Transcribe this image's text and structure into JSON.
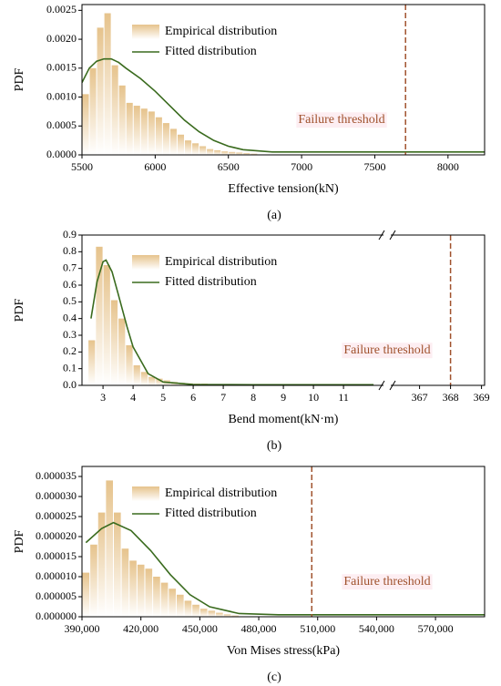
{
  "chart_data": [
    {
      "type": "histogram",
      "caption": "(a)",
      "xlabel": "Effective tension(kN)",
      "ylabel": "PDF",
      "xlim": [
        5500,
        8250
      ],
      "xticks": [
        5500,
        6000,
        6500,
        7000,
        7500,
        8000
      ],
      "ylim": [
        0,
        0.0026
      ],
      "yticks": [
        {
          "value": 0,
          "label": "0.0000"
        },
        0.0005,
        {
          "value": 0.001,
          "label": "0.0010"
        },
        0.0015,
        {
          "value": 0.002,
          "label": "0.0020"
        },
        0.0025
      ],
      "series": [
        {
          "name": "Empirical distribution",
          "type": "histogram",
          "color": "#e6c38c",
          "bins": [
            5500,
            5550,
            5600,
            5650,
            5700,
            5750,
            5800,
            5850,
            5900,
            5950,
            6000,
            6050,
            6100,
            6150,
            6200,
            6250,
            6300,
            6350,
            6400,
            6450,
            6500,
            6550,
            6600,
            6650,
            6700
          ],
          "values": [
            0.00105,
            0.0015,
            0.0022,
            0.00245,
            0.00155,
            0.0012,
            0.0009,
            0.00085,
            0.0008,
            0.00075,
            0.00065,
            0.00055,
            0.00045,
            0.00035,
            0.00025,
            0.0002,
            0.00015,
            0.0001,
            8e-05,
            6e-05,
            5e-05,
            4e-05,
            3e-05,
            2e-05
          ]
        },
        {
          "name": "Fitted distribution",
          "type": "line",
          "color": "#3a6b1e",
          "x": [
            5500,
            5550,
            5600,
            5650,
            5700,
            5750,
            5800,
            5900,
            6000,
            6100,
            6200,
            6300,
            6400,
            6500,
            6600,
            6800,
            7000,
            7500,
            8250
          ],
          "values": [
            0.00125,
            0.0015,
            0.00162,
            0.00166,
            0.00166,
            0.0016,
            0.0015,
            0.00132,
            0.0011,
            0.00085,
            0.0006,
            0.0004,
            0.00025,
            0.00015,
            9e-05,
            5e-05,
            5e-05,
            5e-05,
            5e-05
          ]
        }
      ],
      "threshold": {
        "label": "Failure threshold",
        "x": 7710,
        "color": "#a0522d"
      }
    },
    {
      "type": "histogram",
      "caption": "(b)",
      "xlabel": "Bend moment(kN·m)",
      "ylabel": "PDF",
      "xlim": [
        [
          2.3,
          12.3
        ],
        [
          366.1,
          369.1
        ]
      ],
      "xticks": [
        3,
        4,
        5,
        6,
        7,
        8,
        9,
        10,
        11,
        367,
        368,
        369
      ],
      "ylim": [
        0,
        0.9
      ],
      "yticks": [
        {
          "value": 0,
          "label": "0.0"
        },
        0.1,
        0.2,
        0.3,
        0.4,
        0.5,
        0.6,
        0.7,
        0.8,
        0.9
      ],
      "series": [
        {
          "name": "Empirical distribution",
          "type": "histogram",
          "color": "#e6c38c",
          "bins": [
            2.5,
            2.75,
            3,
            3.25,
            3.5,
            3.75,
            4,
            4.25,
            4.5,
            4.75,
            5,
            5.25,
            5.5,
            5.75,
            6,
            6.25,
            6.5,
            6.75
          ],
          "values": [
            0.27,
            0.83,
            0.72,
            0.51,
            0.4,
            0.24,
            0.12,
            0.08,
            0.05,
            0.04,
            0.03,
            0.02,
            0.015,
            0.012,
            0.01,
            0.01,
            0.008
          ]
        },
        {
          "name": "Fitted distribution",
          "type": "line",
          "color": "#3a6b1e",
          "x": [
            2.6,
            2.8,
            3.0,
            3.1,
            3.3,
            3.5,
            3.8,
            4.0,
            4.5,
            5,
            6,
            8,
            12
          ],
          "values": [
            0.4,
            0.62,
            0.74,
            0.75,
            0.68,
            0.55,
            0.35,
            0.23,
            0.07,
            0.02,
            0.005,
            0.004,
            0.004
          ]
        }
      ],
      "threshold": {
        "label": "Failure threshold",
        "x": 368,
        "color": "#a0522d"
      }
    },
    {
      "type": "histogram",
      "caption": "(c)",
      "xlabel": "Von Mises stress(kPa)",
      "ylabel": "PDF",
      "xlim": [
        390000,
        595000
      ],
      "xticks": [
        {
          "value": 390000,
          "label": "390,000"
        },
        {
          "value": 420000,
          "label": "420,000"
        },
        {
          "value": 450000,
          "label": "450,000"
        },
        {
          "value": 480000,
          "label": "480,000"
        },
        {
          "value": 510000,
          "label": "510,000"
        },
        {
          "value": 540000,
          "label": "540,000"
        },
        {
          "value": 570000,
          "label": "570,000"
        }
      ],
      "ylim": [
        0,
        3.75e-05
      ],
      "yticks": [
        {
          "value": 0,
          "label": "0.000000"
        },
        5e-06,
        {
          "value": 1e-05,
          "label": "0.000010"
        },
        1.5e-05,
        {
          "value": 2e-05,
          "label": "0.000020"
        },
        2.5e-05,
        {
          "value": 3e-05,
          "label": "0.000030"
        },
        3.5e-05
      ],
      "series": [
        {
          "name": "Empirical distribution",
          "type": "histogram",
          "color": "#e6c38c",
          "bins": [
            390000,
            394000,
            398000,
            402000,
            406000,
            410000,
            414000,
            418000,
            422000,
            426000,
            430000,
            434000,
            438000,
            442000,
            446000,
            450000,
            454000,
            458000,
            462000,
            466000,
            470000
          ],
          "values": [
            1.1e-05,
            1.8e-05,
            2.6e-05,
            3.4e-05,
            2.6e-05,
            1.7e-05,
            1.4e-05,
            1.3e-05,
            1.2e-05,
            1e-05,
            8.5e-06,
            7e-06,
            5.5e-06,
            4e-06,
            3e-06,
            2e-06,
            1.5e-06,
            1e-06,
            6e-07,
            3e-07
          ]
        },
        {
          "name": "Fitted distribution",
          "type": "line",
          "color": "#3a6b1e",
          "x": [
            392000,
            400000,
            406000,
            415000,
            425000,
            435000,
            445000,
            455000,
            470000,
            490000,
            595000
          ],
          "values": [
            1.85e-05,
            2.2e-05,
            2.35e-05,
            2.15e-05,
            1.65e-05,
            1.05e-05,
            5.5e-06,
            2.5e-06,
            8e-07,
            5e-07,
            5e-07
          ]
        }
      ],
      "threshold": {
        "label": "Failure threshold",
        "x": 507000,
        "color": "#a0522d"
      }
    }
  ]
}
